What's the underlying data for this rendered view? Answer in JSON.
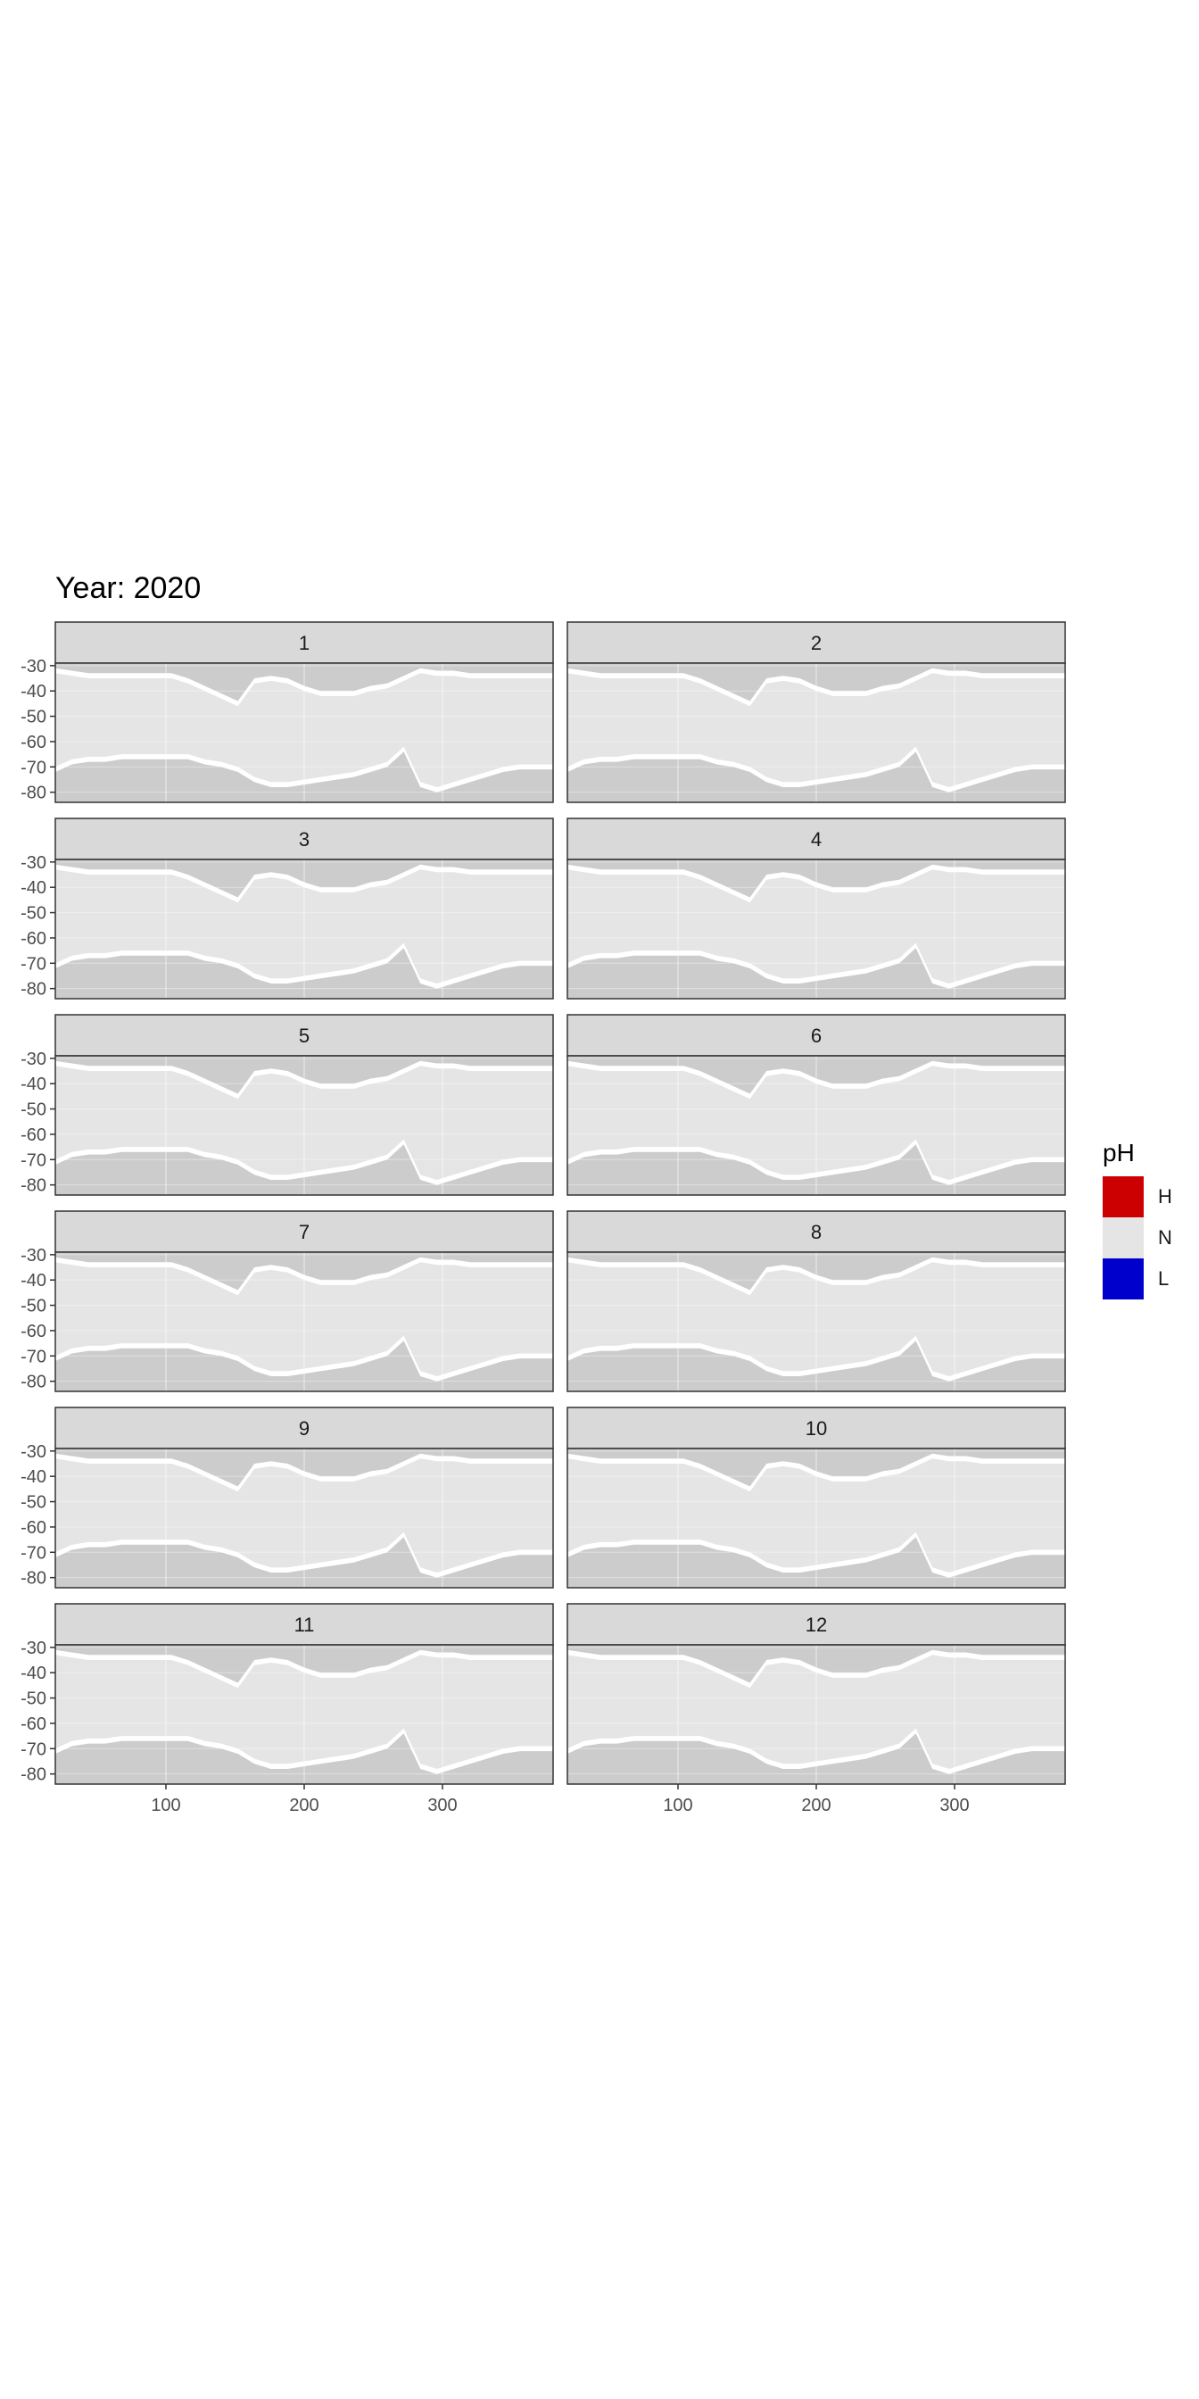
{
  "chart_data": {
    "type": "heatmap",
    "title": "Year: 2020",
    "panels": [
      "1",
      "2",
      "3",
      "4",
      "5",
      "6",
      "7",
      "8",
      "9",
      "10",
      "11",
      "12"
    ],
    "x_ticks": [
      100,
      200,
      300
    ],
    "y_ticks": [
      -30,
      -40,
      -50,
      -60,
      -70,
      -80
    ],
    "x_range": [
      20,
      380
    ],
    "y_range": [
      -84,
      -29
    ],
    "legend": {
      "title": "pH",
      "position": "right",
      "entries": [
        {
          "label": "H",
          "color": "#cc0000"
        },
        {
          "label": "N",
          "color": "#e5e5e5"
        },
        {
          "label": "L",
          "color": "#0000cc"
        }
      ]
    },
    "colors": {
      "land": "#cccccc",
      "ocean_N": "#e5e5e5",
      "strip_fill": "#d9d9d9",
      "grid": "#ebebeb"
    },
    "antarctic_edge_lat": [
      -70,
      -67,
      -66,
      -66,
      -65,
      -65,
      -65,
      -65,
      -65,
      -67,
      -68,
      -70,
      -74,
      -76,
      -76,
      -75,
      -74,
      -73,
      -72,
      -70,
      -68,
      -62,
      -76,
      -78,
      -76,
      -74,
      -72,
      -70,
      -69,
      -69,
      -69
    ],
    "ocean_top_lat": [
      -33,
      -34,
      -35,
      -35,
      -35,
      -35,
      -35,
      -35,
      -37,
      -40,
      -43,
      -46,
      -37,
      -36,
      -37,
      -40,
      -42,
      -42,
      -42,
      -40,
      -39,
      -36,
      -33,
      -34,
      -34,
      -35,
      -35,
      -35,
      -35,
      -35,
      -35
    ]
  }
}
